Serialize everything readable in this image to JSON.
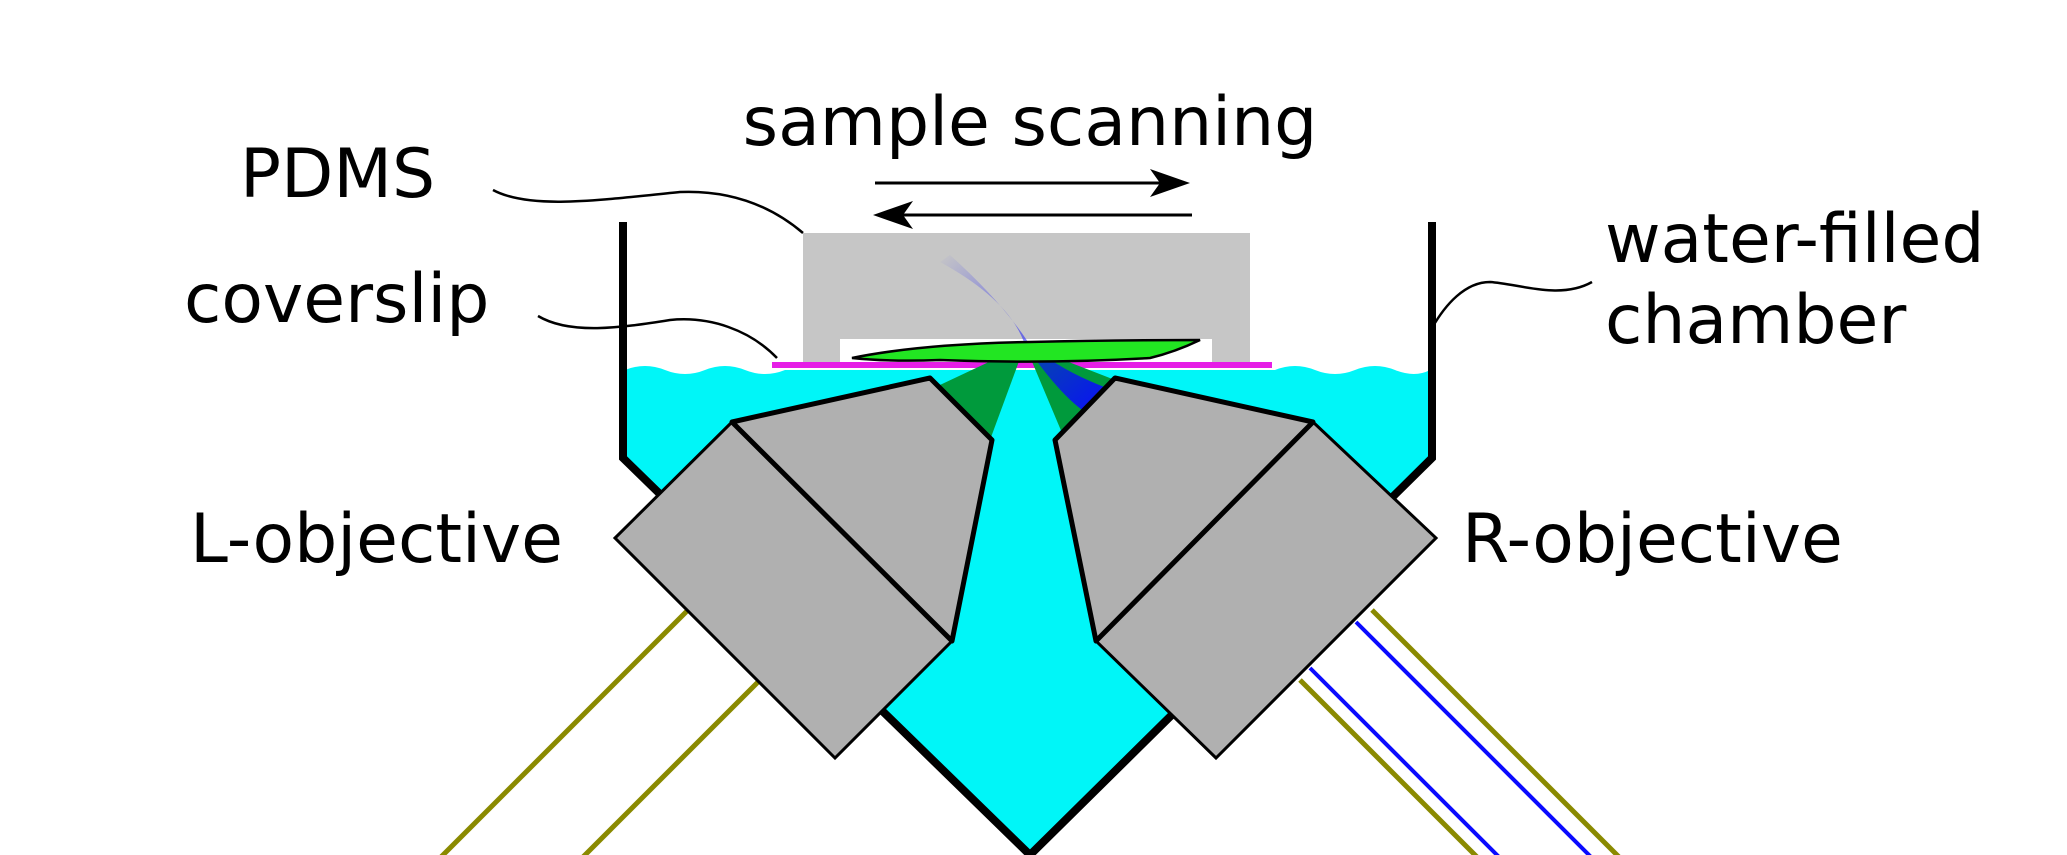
{
  "labels": {
    "scanning": "sample scanning",
    "pdms": "PDMS",
    "coverslip": "coverslip",
    "chamber_line1": "water-filled",
    "chamber_line2": "chamber",
    "left_objective": "L-objective",
    "right_objective": "R-objective"
  },
  "colors": {
    "water": "#00f6f8",
    "pdms": "#c6c6c6",
    "objective": "#b0b0b0",
    "coverslip": "#e61ee6",
    "sample": "#22e622",
    "detection_cone": "#009a3c",
    "excitation": "#0a0aff",
    "beam": "#8a8a00",
    "chamber_wall": "#000000"
  }
}
